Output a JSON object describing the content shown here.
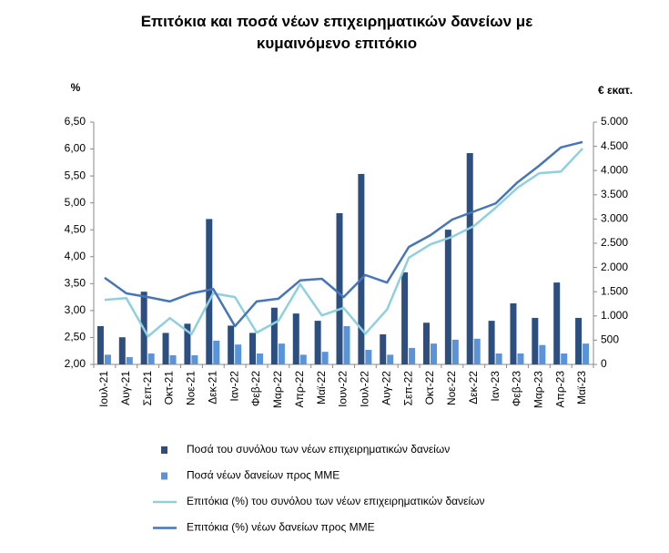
{
  "chart_data": {
    "type": "bar",
    "title": "Επιτόκια και ποσά νέων επιχειρηματικών δανείων με κυμαινόμενο επιτόκιο",
    "y_label": "%",
    "y2_label": "€ εκατ.",
    "categories": [
      "Ιουλ-21",
      "Αυγ-21",
      "Σεπ-21",
      "Οκτ-21",
      "Νοε-21",
      "Δεκ-21",
      "Ιαν-22",
      "Φεβ-22",
      "Μαρ-22",
      "Απρ-22",
      "Μαϊ-22",
      "Ιουν-22",
      "Ιουλ-22",
      "Αυγ-22",
      "Σεπ-22",
      "Οκτ-22",
      "Νοε-22",
      "Δεκ-22",
      "Ιαν-23",
      "Φεβ-23",
      "Μαρ-23",
      "Απρ-23",
      "Μαϊ-23"
    ],
    "series": [
      {
        "name": "Ποσά του συνόλου των νέων επιχειρηματικών δανείων",
        "type": "bar",
        "axis": "y2",
        "color": "#2c4f7f",
        "values": [
          790,
          560,
          1500,
          650,
          840,
          3000,
          800,
          650,
          1170,
          1050,
          900,
          3120,
          3930,
          620,
          1900,
          860,
          2780,
          4360,
          900,
          1260,
          960,
          1690,
          960
        ]
      },
      {
        "name": "Ποσά νέων δανείων προς ΜΜΕ",
        "type": "bar",
        "axis": "y2",
        "color": "#5b93d9",
        "values": [
          200,
          150,
          225,
          190,
          190,
          490,
          410,
          225,
          430,
          200,
          260,
          790,
          300,
          200,
          340,
          430,
          510,
          530,
          225,
          225,
          400,
          225,
          430
        ]
      },
      {
        "name": "Επιτόκια (%) του συνόλου των νέων επιχειρηματικών δανείων",
        "type": "line",
        "color": "#8fd0df",
        "values": [
          3.2,
          3.23,
          2.52,
          2.86,
          2.56,
          3.32,
          3.25,
          2.59,
          2.81,
          3.49,
          2.91,
          3.05,
          2.57,
          3.02,
          3.98,
          4.23,
          4.37,
          4.57,
          4.91,
          5.28,
          5.55,
          5.58,
          6.01
        ]
      },
      {
        "name": "Επιτόκια (%) νέων δανείων προς ΜΜΕ",
        "type": "line",
        "color": "#4675bb",
        "values": [
          3.61,
          3.32,
          3.25,
          3.17,
          3.32,
          3.4,
          2.71,
          3.17,
          3.22,
          3.56,
          3.59,
          3.25,
          3.66,
          3.52,
          4.18,
          4.4,
          4.69,
          4.84,
          4.99,
          5.38,
          5.69,
          6.03,
          6.13
        ]
      }
    ],
    "ylim": [
      2,
      6.5
    ],
    "yticks": [
      {
        "value": 2,
        "label": "2,00"
      },
      {
        "value": 2.5,
        "label": "2,50"
      },
      {
        "value": 3,
        "label": "3,00"
      },
      {
        "value": 3.5,
        "label": "3,50"
      },
      {
        "value": 4,
        "label": "4,00"
      },
      {
        "value": 4.5,
        "label": "4,50"
      },
      {
        "value": 5,
        "label": "5,00"
      },
      {
        "value": 5.5,
        "label": "5,50"
      },
      {
        "value": 6,
        "label": "6,00"
      },
      {
        "value": 6.5,
        "label": "6,50"
      }
    ],
    "y2lim": [
      0,
      5000
    ],
    "y2ticks": [
      0,
      500,
      {
        "value": 1000,
        "label": "1.000"
      },
      {
        "value": 1500,
        "label": "1.500"
      },
      {
        "value": 2000,
        "label": "2.000"
      },
      {
        "value": 2500,
        "label": "2.500"
      },
      {
        "value": 3000,
        "label": "3.000"
      },
      {
        "value": 3500,
        "label": "3.500"
      },
      {
        "value": 4000,
        "label": "4.000"
      },
      {
        "value": 4500,
        "label": "4.500"
      },
      {
        "value": 5000,
        "label": "5.000"
      }
    ],
    "legend": "bottom"
  }
}
